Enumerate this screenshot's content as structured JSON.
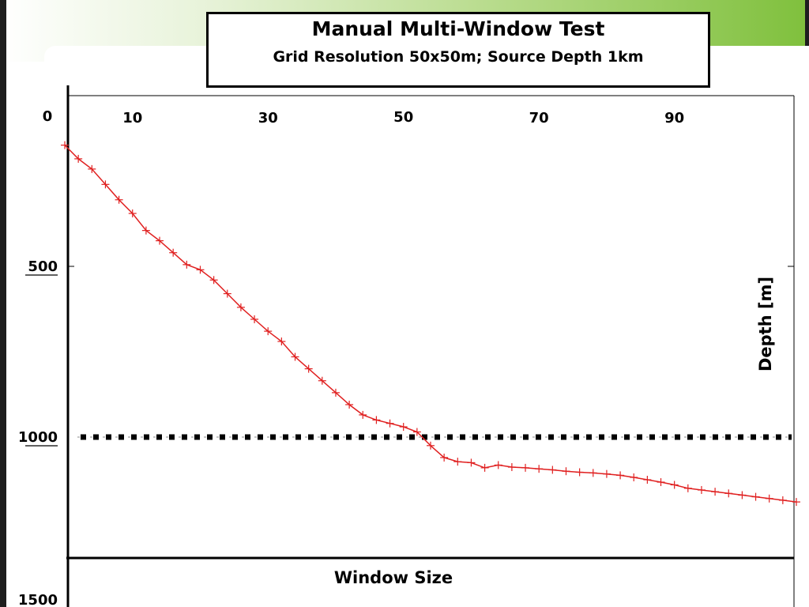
{
  "chart_data": {
    "type": "line",
    "title": "Manual Multi-Window Test",
    "subtitle": "Grid Resolution 50x50m; Source Depth 1km",
    "xlabel": "Window Size",
    "ylabel": "Depth [m]",
    "x_ticks": [
      0,
      10,
      30,
      50,
      70,
      90
    ],
    "y_ticks": [
      500,
      1000,
      1500
    ],
    "xlim": [
      0,
      108
    ],
    "ylim": [
      1500,
      0
    ],
    "reference_line": {
      "y": 1000,
      "style": "dotted",
      "color": "#000000"
    },
    "series": [
      {
        "color": "#e02020",
        "marker": "plus",
        "x": [
          0,
          2,
          4,
          6,
          8,
          10,
          12,
          14,
          16,
          18,
          20,
          22,
          24,
          26,
          28,
          30,
          32,
          34,
          36,
          38,
          40,
          42,
          44,
          46,
          48,
          50,
          52,
          54,
          56,
          58,
          60,
          62,
          64,
          66,
          68,
          70,
          72,
          74,
          76,
          78,
          80,
          82,
          84,
          86,
          88,
          90,
          92,
          94,
          96,
          98,
          100,
          102,
          104,
          106,
          108
        ],
        "y": [
          145,
          185,
          215,
          260,
          305,
          345,
          395,
          425,
          460,
          495,
          510,
          540,
          580,
          620,
          655,
          690,
          720,
          765,
          800,
          835,
          870,
          905,
          935,
          950,
          960,
          970,
          985,
          1025,
          1060,
          1072,
          1075,
          1090,
          1082,
          1088,
          1090,
          1093,
          1096,
          1100,
          1103,
          1105,
          1108,
          1112,
          1118,
          1125,
          1132,
          1140,
          1150,
          1155,
          1160,
          1165,
          1170,
          1175,
          1180,
          1185,
          1190
        ]
      }
    ]
  }
}
